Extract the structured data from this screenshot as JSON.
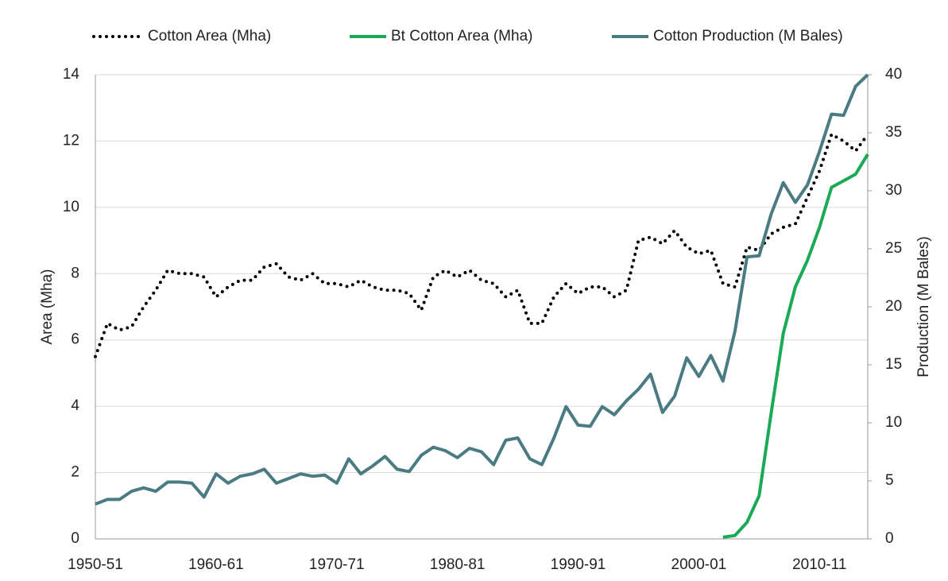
{
  "chart_data": {
    "type": "line",
    "categories": [
      "1950-51",
      null,
      null,
      null,
      null,
      null,
      null,
      null,
      null,
      null,
      "1960-61",
      null,
      null,
      null,
      null,
      null,
      null,
      null,
      null,
      null,
      "1970-71",
      null,
      null,
      null,
      null,
      null,
      null,
      null,
      null,
      null,
      "1980-81",
      null,
      null,
      null,
      null,
      null,
      null,
      null,
      null,
      null,
      "1990-91",
      null,
      null,
      null,
      null,
      null,
      null,
      null,
      null,
      null,
      "2000-01",
      null,
      null,
      null,
      null,
      null,
      null,
      null,
      null,
      null,
      "2010-11",
      null,
      null,
      null,
      null
    ],
    "ylabel": "Area (Mha)",
    "y2label": "Production (M Bales)",
    "ylim": [
      0,
      14
    ],
    "yticks": [
      0,
      2,
      4,
      6,
      8,
      10,
      12,
      14
    ],
    "y2lim": [
      0,
      40
    ],
    "y2ticks": [
      0,
      5,
      10,
      15,
      20,
      25,
      30,
      35,
      40
    ],
    "grid": true,
    "legend": "top",
    "series": [
      {
        "name": "Cotton Area (Mha)",
        "color": "#000000",
        "dash": "dotted",
        "values": [
          5.5,
          6.5,
          6.3,
          6.4,
          7.0,
          7.5,
          8.1,
          8.0,
          8.0,
          7.9,
          7.3,
          7.6,
          7.8,
          7.8,
          8.2,
          8.3,
          7.9,
          7.8,
          8.0,
          7.7,
          7.7,
          7.6,
          7.8,
          7.6,
          7.5,
          7.5,
          7.4,
          6.9,
          7.9,
          8.1,
          7.9,
          8.1,
          7.8,
          7.7,
          7.3,
          7.5,
          6.5,
          6.5,
          7.3,
          7.7,
          7.4,
          7.6,
          7.6,
          7.3,
          7.5,
          9.0,
          9.1,
          8.9,
          9.3,
          8.8,
          8.6,
          8.7,
          7.7,
          7.6,
          8.8,
          8.7,
          9.2,
          9.4,
          9.5,
          10.3,
          11.1,
          12.2,
          12.0,
          11.7,
          12.2
        ]
      },
      {
        "name": "Bt Cotton Area (Mha)",
        "color": "#1aaa55",
        "dash": "solid",
        "values": [
          null,
          null,
          null,
          null,
          null,
          null,
          null,
          null,
          null,
          null,
          null,
          null,
          null,
          null,
          null,
          null,
          null,
          null,
          null,
          null,
          null,
          null,
          null,
          null,
          null,
          null,
          null,
          null,
          null,
          null,
          null,
          null,
          null,
          null,
          null,
          null,
          null,
          null,
          null,
          null,
          null,
          null,
          null,
          null,
          null,
          null,
          null,
          null,
          null,
          null,
          null,
          null,
          0.05,
          0.1,
          0.5,
          1.3,
          3.8,
          6.2,
          7.6,
          8.4,
          9.4,
          10.6,
          10.8,
          11.0,
          11.6
        ]
      },
      {
        "name": "Cotton Production (M Bales)",
        "color": "#4a7b82",
        "dash": "solid",
        "axis": "y2",
        "values": [
          3.0,
          3.4,
          3.4,
          4.1,
          4.4,
          4.1,
          4.9,
          4.9,
          4.8,
          3.6,
          5.6,
          4.8,
          5.4,
          5.6,
          6.0,
          4.8,
          5.2,
          5.6,
          5.4,
          5.5,
          4.8,
          6.9,
          5.6,
          6.3,
          7.1,
          6.0,
          5.8,
          7.2,
          7.9,
          7.6,
          7.0,
          7.8,
          7.5,
          6.4,
          8.5,
          8.7,
          6.9,
          6.4,
          8.7,
          11.4,
          9.8,
          9.7,
          11.4,
          10.7,
          11.9,
          12.9,
          14.2,
          10.9,
          12.3,
          15.6,
          14.0,
          15.8,
          13.6,
          17.9,
          24.3,
          24.4,
          28.0,
          30.7,
          29.0,
          30.5,
          33.4,
          36.6,
          36.5,
          39.0,
          40.0
        ]
      }
    ]
  }
}
